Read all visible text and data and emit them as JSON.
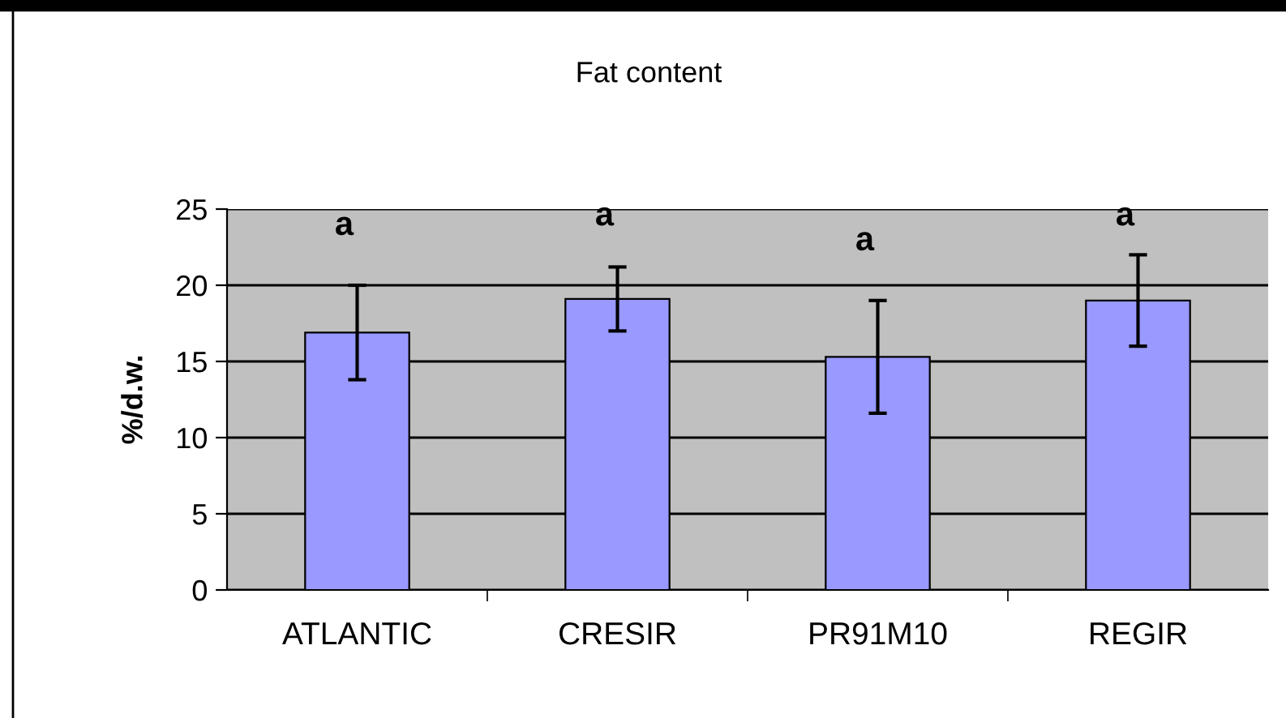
{
  "chart_data": {
    "type": "bar",
    "title": "Fat content",
    "ylabel": "%/d.w.",
    "categories": [
      "ATLANTIC",
      "CRESIR",
      "PR91M10",
      "REGIR"
    ],
    "values": [
      16.9,
      19.1,
      15.3,
      19.0
    ],
    "errors": [
      3.1,
      2.1,
      3.7,
      3.0
    ],
    "color": "#9999ff",
    "ylim": [
      0,
      25
    ],
    "yticks": [
      0,
      5,
      10,
      15,
      20,
      25
    ],
    "grid": "y",
    "annotations": [
      "a",
      "a",
      "a",
      "a"
    ]
  }
}
